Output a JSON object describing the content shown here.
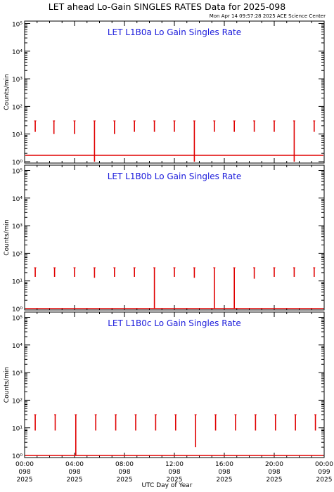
{
  "header": {
    "title": "LET ahead Lo-Gain SINGLES RATES Data for 2025-098",
    "timestamp": "Mon Apr 14 09:57:28 2025 ACE Science Center"
  },
  "colors": {
    "panel_title": "#1a1adb",
    "series": "#e00000",
    "axes": "#000000"
  },
  "chart_data": {
    "type": "line",
    "xlabel": "UTC Day of Year",
    "ylabel": "Counts/min",
    "y_scale": "log",
    "ylim": [
      1,
      100000
    ],
    "y_tick_labels": [
      "10⁰",
      "10¹",
      "10²",
      "10³",
      "10⁴",
      "10⁵"
    ],
    "xlim_hours": [
      0,
      24
    ],
    "x_ticks": [
      {
        "hour": 0,
        "time": "00:00",
        "day": "098",
        "year": "2025"
      },
      {
        "hour": 4,
        "time": "04:00",
        "day": "098",
        "year": "2025"
      },
      {
        "hour": 8,
        "time": "08:00",
        "day": "098",
        "year": "2025"
      },
      {
        "hour": 12,
        "time": "12:00",
        "day": "098",
        "year": "2025"
      },
      {
        "hour": 16,
        "time": "16:00",
        "day": "098",
        "year": "2025"
      },
      {
        "hour": 20,
        "time": "20:00",
        "day": "098",
        "year": "2025"
      },
      {
        "hour": 24,
        "time": "00:00",
        "day": "099",
        "year": "2025"
      }
    ],
    "panels": [
      {
        "title": "LET L1B0a Lo Gain Singles Rate",
        "baseline": 1.7,
        "spikes": [
          {
            "hour": 0.85,
            "top": 30,
            "bottom": 12
          },
          {
            "hour": 2.35,
            "top": 30,
            "bottom": 10
          },
          {
            "hour": 4.0,
            "top": 30,
            "bottom": 10
          },
          {
            "hour": 5.6,
            "top": 30,
            "bottom": 1
          },
          {
            "hour": 7.2,
            "top": 30,
            "bottom": 10
          },
          {
            "hour": 8.8,
            "top": 30,
            "bottom": 12
          },
          {
            "hour": 10.4,
            "top": 30,
            "bottom": 12
          },
          {
            "hour": 12.0,
            "top": 30,
            "bottom": 12
          },
          {
            "hour": 13.6,
            "top": 30,
            "bottom": 1
          },
          {
            "hour": 15.2,
            "top": 30,
            "bottom": 12
          },
          {
            "hour": 16.8,
            "top": 30,
            "bottom": 12
          },
          {
            "hour": 18.4,
            "top": 30,
            "bottom": 12
          },
          {
            "hour": 20.0,
            "top": 30,
            "bottom": 12
          },
          {
            "hour": 21.6,
            "top": 30,
            "bottom": 1
          },
          {
            "hour": 23.2,
            "top": 30,
            "bottom": 12
          }
        ]
      },
      {
        "title": "LET L1B0b Lo Gain Singles Rate",
        "baseline": 1,
        "spikes": [
          {
            "hour": 0.85,
            "top": 30,
            "bottom": 14
          },
          {
            "hour": 2.4,
            "top": 30,
            "bottom": 14
          },
          {
            "hour": 4.0,
            "top": 30,
            "bottom": 14
          },
          {
            "hour": 5.6,
            "top": 30,
            "bottom": 13
          },
          {
            "hour": 7.2,
            "top": 30,
            "bottom": 14
          },
          {
            "hour": 8.8,
            "top": 30,
            "bottom": 14
          },
          {
            "hour": 10.4,
            "top": 30,
            "bottom": 1
          },
          {
            "hour": 12.0,
            "top": 30,
            "bottom": 14
          },
          {
            "hour": 13.6,
            "top": 30,
            "bottom": 13
          },
          {
            "hour": 15.2,
            "top": 30,
            "bottom": 1
          },
          {
            "hour": 16.8,
            "top": 30,
            "bottom": 1
          },
          {
            "hour": 18.4,
            "top": 30,
            "bottom": 12
          },
          {
            "hour": 20.0,
            "top": 30,
            "bottom": 14
          },
          {
            "hour": 21.6,
            "top": 30,
            "bottom": 14
          },
          {
            "hour": 23.2,
            "top": 30,
            "bottom": 14
          }
        ]
      },
      {
        "title": "LET L1B0c Lo Gain Singles Rate",
        "baseline": 1,
        "spikes": [
          {
            "hour": 0.85,
            "top": 30,
            "bottom": 8
          },
          {
            "hour": 2.45,
            "top": 30,
            "bottom": 8
          },
          {
            "hour": 4.1,
            "top": 30,
            "bottom": 1
          },
          {
            "hour": 5.7,
            "top": 30,
            "bottom": 8
          },
          {
            "hour": 7.3,
            "top": 30,
            "bottom": 8
          },
          {
            "hour": 8.9,
            "top": 30,
            "bottom": 8
          },
          {
            "hour": 10.5,
            "top": 30,
            "bottom": 8
          },
          {
            "hour": 12.1,
            "top": 30,
            "bottom": 8
          },
          {
            "hour": 13.7,
            "top": 30,
            "bottom": 2
          },
          {
            "hour": 15.3,
            "top": 30,
            "bottom": 8
          },
          {
            "hour": 16.9,
            "top": 30,
            "bottom": 8
          },
          {
            "hour": 18.5,
            "top": 30,
            "bottom": 8
          },
          {
            "hour": 20.1,
            "top": 30,
            "bottom": 8
          },
          {
            "hour": 21.7,
            "top": 30,
            "bottom": 8
          },
          {
            "hour": 23.3,
            "top": 30,
            "bottom": 8
          }
        ]
      }
    ]
  }
}
